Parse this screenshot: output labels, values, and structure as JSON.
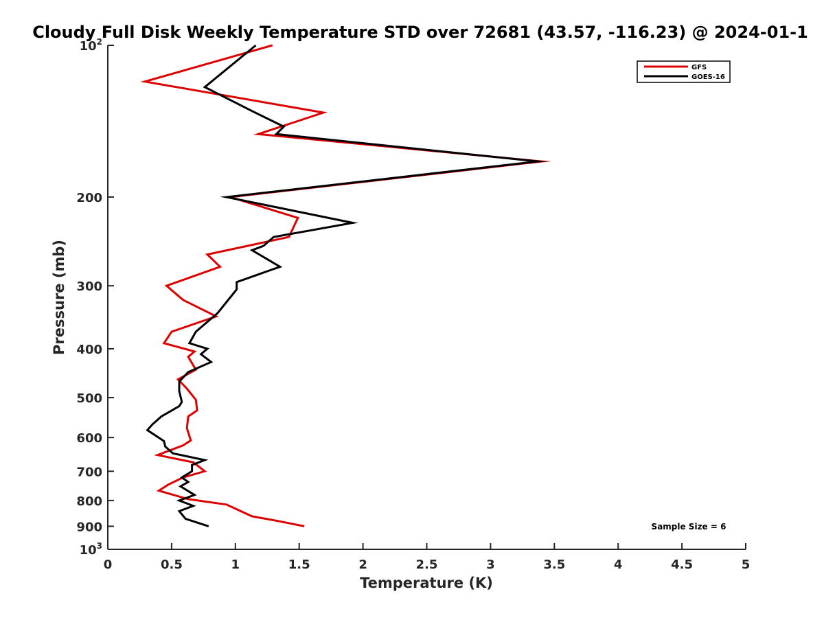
{
  "chart_data": {
    "type": "line",
    "title": "Cloudy Full Disk Weekly Temperature STD over 72681 (43.57, -116.23) @ 2024-01-1",
    "xlabel": "Temperature (K)",
    "ylabel": "Pressure (mb)",
    "xlim": [
      0,
      5
    ],
    "ylim": [
      100,
      1000
    ],
    "y_scale": "log",
    "y_reversed": true,
    "x_ticks": [
      "0",
      "0.5",
      "1",
      "1.5",
      "2",
      "2.5",
      "3",
      "3.5",
      "4",
      "4.5",
      "5"
    ],
    "y_ticks": [
      {
        "value": 100,
        "base": "10",
        "exp": "2"
      },
      {
        "value": 200,
        "label": "200"
      },
      {
        "value": 300,
        "label": "300"
      },
      {
        "value": 400,
        "label": "400"
      },
      {
        "value": 500,
        "label": "500"
      },
      {
        "value": 600,
        "label": "600"
      },
      {
        "value": 700,
        "label": "700"
      },
      {
        "value": 800,
        "label": "800"
      },
      {
        "value": 900,
        "label": "900"
      },
      {
        "value": 1000,
        "base": "10",
        "exp": "3"
      }
    ],
    "grid": false,
    "legend_position": "top-right",
    "annotation": "Sample Size = 6",
    "series": [
      {
        "name": "GFS",
        "color": "#dd0000",
        "points": [
          [
            1.29,
            100
          ],
          [
            0.29,
            118
          ],
          [
            1.69,
            136
          ],
          [
            1.18,
            150
          ],
          [
            3.4,
            170
          ],
          [
            0.96,
            200
          ],
          [
            1.49,
            220
          ],
          [
            1.42,
            240
          ],
          [
            0.78,
            260
          ],
          [
            0.88,
            275
          ],
          [
            0.46,
            300
          ],
          [
            0.59,
            320
          ],
          [
            0.85,
            345
          ],
          [
            0.5,
            370
          ],
          [
            0.44,
            390
          ],
          [
            0.68,
            405
          ],
          [
            0.63,
            415
          ],
          [
            0.69,
            440
          ],
          [
            0.55,
            460
          ],
          [
            0.62,
            480
          ],
          [
            0.69,
            505
          ],
          [
            0.7,
            530
          ],
          [
            0.63,
            545
          ],
          [
            0.62,
            575
          ],
          [
            0.65,
            608
          ],
          [
            0.59,
            622
          ],
          [
            0.39,
            650
          ],
          [
            0.67,
            672
          ],
          [
            0.76,
            700
          ],
          [
            0.59,
            720
          ],
          [
            0.47,
            745
          ],
          [
            0.4,
            765
          ],
          [
            0.63,
            795
          ],
          [
            0.93,
            815
          ],
          [
            1.13,
            860
          ],
          [
            1.35,
            880
          ],
          [
            1.54,
            900
          ]
        ]
      },
      {
        "name": "GOES-16",
        "color": "#000000",
        "points": [
          [
            1.16,
            100
          ],
          [
            0.76,
            121
          ],
          [
            1.13,
            135
          ],
          [
            1.38,
            145
          ],
          [
            1.32,
            150
          ],
          [
            3.37,
            170
          ],
          [
            0.93,
            200
          ],
          [
            1.92,
            225
          ],
          [
            1.3,
            240
          ],
          [
            1.22,
            250
          ],
          [
            1.13,
            255
          ],
          [
            1.35,
            275
          ],
          [
            1.01,
            295
          ],
          [
            1.01,
            305
          ],
          [
            0.86,
            340
          ],
          [
            0.69,
            370
          ],
          [
            0.64,
            390
          ],
          [
            0.78,
            400
          ],
          [
            0.73,
            410
          ],
          [
            0.81,
            425
          ],
          [
            0.63,
            445
          ],
          [
            0.56,
            465
          ],
          [
            0.56,
            485
          ],
          [
            0.58,
            510
          ],
          [
            0.56,
            520
          ],
          [
            0.42,
            545
          ],
          [
            0.35,
            565
          ],
          [
            0.31,
            580
          ],
          [
            0.44,
            610
          ],
          [
            0.45,
            625
          ],
          [
            0.51,
            645
          ],
          [
            0.76,
            665
          ],
          [
            0.66,
            680
          ],
          [
            0.66,
            700
          ],
          [
            0.58,
            720
          ],
          [
            0.63,
            735
          ],
          [
            0.57,
            750
          ],
          [
            0.68,
            780
          ],
          [
            0.56,
            800
          ],
          [
            0.67,
            820
          ],
          [
            0.56,
            840
          ],
          [
            0.61,
            870
          ],
          [
            0.79,
            900
          ]
        ]
      }
    ]
  }
}
